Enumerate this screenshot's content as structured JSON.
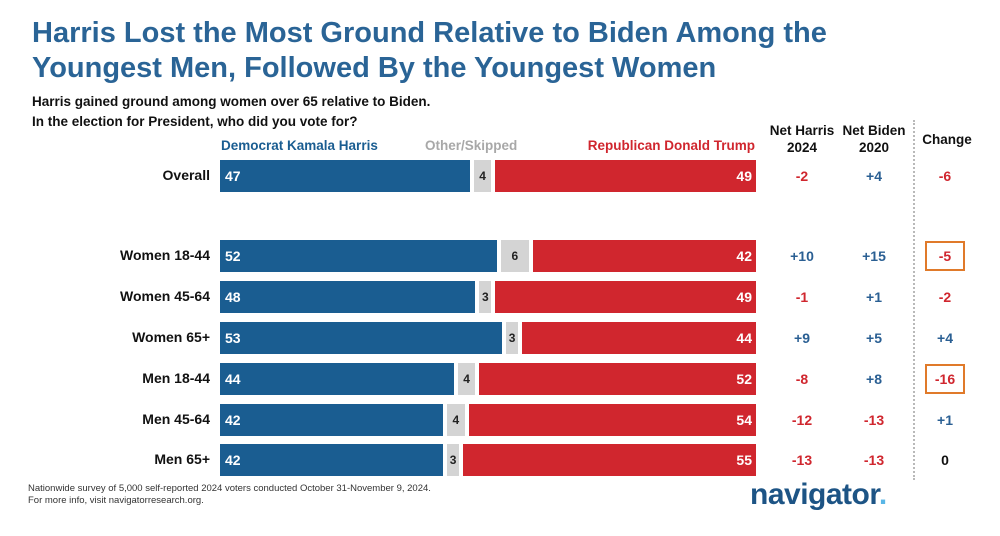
{
  "header": {
    "title_line1": "Harris Lost the Most Ground Relative to Biden Among the",
    "title_line2": "Youngest Men, Followed By the Youngest Women",
    "subtitle_line1": "Harris gained ground among women over 65 relative to Biden.",
    "subtitle_line2": "In the election for President, who did you vote for?"
  },
  "legend": {
    "dem": "Democrat Kamala Harris",
    "other": "Other/Skipped",
    "rep": "Republican Donald Trump"
  },
  "columns": {
    "net_harris_1": "Net Harris",
    "net_harris_2": "2024",
    "net_biden_1": "Net Biden",
    "net_biden_2": "2020",
    "change": "Change"
  },
  "chart_data": {
    "type": "bar",
    "stacked": true,
    "orientation": "horizontal",
    "title": "Harris Lost the Most Ground Relative to Biden Among the Youngest Men, Followed By the Youngest Women",
    "categories": [
      "Overall",
      "Women 18-44",
      "Women 45-64",
      "Women 65+",
      "Men 18-44",
      "Men 45-64",
      "Men 65+"
    ],
    "series": [
      {
        "name": "Democrat Kamala Harris",
        "color": "#1a5d91",
        "values": [
          47,
          52,
          48,
          53,
          44,
          42,
          42
        ]
      },
      {
        "name": "Other/Skipped",
        "color": "#d4d4d4",
        "values": [
          4,
          6,
          3,
          3,
          4,
          4,
          3
        ]
      },
      {
        "name": "Republican Donald Trump",
        "color": "#d0262e",
        "values": [
          49,
          42,
          49,
          44,
          52,
          54,
          55
        ]
      }
    ],
    "net_harris_2024": [
      "-2",
      "+10",
      "-1",
      "+9",
      "-8",
      "-12",
      "-13"
    ],
    "net_biden_2020": [
      "+4",
      "+15",
      "+1",
      "+5",
      "+8",
      "-13",
      "-13"
    ],
    "change": [
      "-6",
      "-5",
      "-2",
      "+4",
      "-16",
      "+1",
      "0"
    ],
    "highlighted_change": [
      "Women 18-44",
      "Men 18-44"
    ]
  },
  "footnote": {
    "line1": "Nationwide survey of 5,000 self-reported 2024 voters conducted October 31-November 9, 2024.",
    "line2": "For more info, visit navigatorresearch.org."
  },
  "logo": {
    "text": "navigator",
    "dot": "."
  }
}
